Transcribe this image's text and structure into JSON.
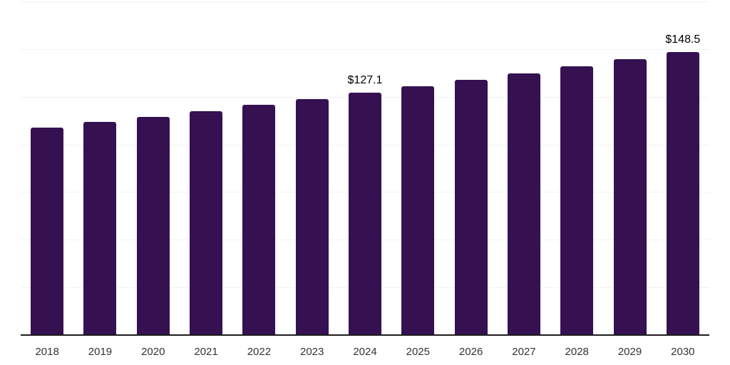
{
  "chart_data": {
    "type": "bar",
    "title": "",
    "xlabel": "",
    "ylabel": "",
    "categories": [
      "2018",
      "2019",
      "2020",
      "2021",
      "2022",
      "2023",
      "2024",
      "2025",
      "2026",
      "2027",
      "2028",
      "2029",
      "2030"
    ],
    "values": [
      108.8,
      111.7,
      114.6,
      117.6,
      120.7,
      123.9,
      127.1,
      130.4,
      133.9,
      137.4,
      141.0,
      144.7,
      148.5
    ],
    "data_labels": [
      {
        "category": "2024",
        "text": "$127.1"
      },
      {
        "category": "2030",
        "text": "$148.5"
      }
    ],
    "ylim": [
      0,
      175
    ],
    "gridline_interval": 25,
    "grid": true,
    "legend": "none",
    "colors": {
      "bar": "#351151",
      "gridline": "#f2f2f2",
      "axis": "#1d1d1d",
      "tick_text": "#333333",
      "label_text": "#000000",
      "background": "#ffffff"
    }
  }
}
